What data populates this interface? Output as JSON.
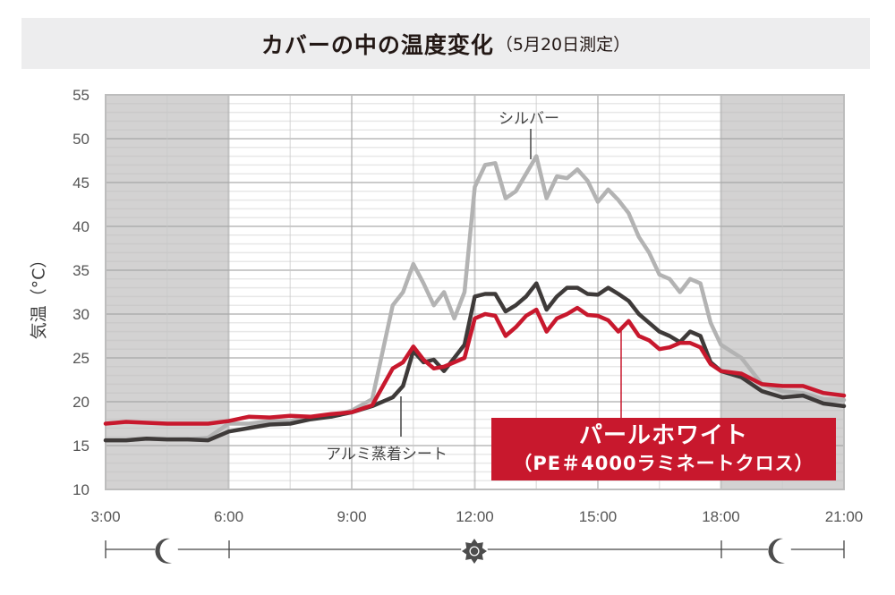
{
  "title": {
    "main": "カバーの中の温度変化",
    "sub": "（5月20日測定）"
  },
  "y_axis_label": "気温（°C）",
  "annotations": {
    "silver": "シルバー",
    "aluminum": "アルミ蒸着シート",
    "pearl_white_line1": "パールホワイト",
    "pearl_white_line2": "（PE＃4000ラミネートクロス）"
  },
  "timeline_icons": [
    "moon-icon",
    "sun-icon",
    "moon-icon"
  ],
  "colors": {
    "silver": "#b3b3b3",
    "aluminum": "#3e3a39",
    "pearl_white": "#c8182d",
    "night_shade": "#d3d2d2",
    "title_bg": "#ededee"
  },
  "chart_data": {
    "type": "line",
    "title": "カバーの中の温度変化（5月20日測定）",
    "xlabel": "",
    "ylabel": "気温（°C）",
    "xlim": [
      "3:00",
      "21:00"
    ],
    "ylim": [
      10,
      55
    ],
    "x_ticks": [
      "3:00",
      "6:00",
      "9:00",
      "12:00",
      "15:00",
      "18:00",
      "21:00"
    ],
    "y_ticks": [
      10,
      15,
      20,
      25,
      30,
      35,
      40,
      45,
      50,
      55
    ],
    "grid": true,
    "night_bands": [
      [
        "3:00",
        "6:00"
      ],
      [
        "18:00",
        "21:00"
      ]
    ],
    "x": [
      3.0,
      3.5,
      4.0,
      4.5,
      5.0,
      5.5,
      6.0,
      6.5,
      7.0,
      7.5,
      8.0,
      8.5,
      9.0,
      9.5,
      10.0,
      10.25,
      10.5,
      10.75,
      11.0,
      11.25,
      11.5,
      11.75,
      12.0,
      12.25,
      12.5,
      12.75,
      13.0,
      13.25,
      13.5,
      13.75,
      14.0,
      14.25,
      14.5,
      14.75,
      15.0,
      15.25,
      15.5,
      15.75,
      16.0,
      16.25,
      16.5,
      16.75,
      17.0,
      17.25,
      17.5,
      17.75,
      18.0,
      18.5,
      19.0,
      19.5,
      20.0,
      20.5,
      21.0
    ],
    "series": [
      {
        "name": "シルバー",
        "values": [
          15.6,
          15.6,
          15.8,
          15.7,
          15.7,
          15.9,
          17.5,
          17.5,
          17.8,
          17.8,
          18.3,
          18.3,
          19.0,
          20.3,
          31.0,
          32.5,
          35.7,
          33.5,
          31.0,
          32.5,
          29.5,
          32.5,
          44.5,
          47.0,
          47.2,
          43.2,
          44.0,
          46.0,
          48.0,
          43.2,
          45.7,
          45.5,
          46.5,
          45.2,
          42.8,
          44.2,
          43.0,
          41.5,
          38.8,
          37.0,
          34.5,
          34.0,
          32.5,
          34.0,
          33.5,
          29.0,
          26.5,
          25.0,
          22.0,
          21.2,
          21.0,
          20.3,
          20.2
        ]
      },
      {
        "name": "アルミ蒸着シート",
        "values": [
          15.6,
          15.6,
          15.8,
          15.7,
          15.7,
          15.6,
          16.6,
          17.0,
          17.4,
          17.5,
          18.0,
          18.3,
          18.8,
          19.5,
          20.5,
          21.8,
          25.8,
          24.5,
          24.8,
          23.5,
          25.0,
          26.5,
          32.0,
          32.3,
          32.3,
          30.3,
          31.0,
          32.0,
          33.5,
          30.5,
          32.0,
          33.0,
          33.0,
          32.3,
          32.2,
          33.0,
          32.3,
          31.5,
          30.0,
          29.0,
          28.0,
          27.5,
          26.8,
          28.0,
          27.5,
          24.5,
          23.5,
          22.8,
          21.2,
          20.5,
          20.7,
          19.8,
          19.5
        ]
      },
      {
        "name": "パールホワイト（PE＃4000ラミネートクロス）",
        "values": [
          17.5,
          17.7,
          17.6,
          17.5,
          17.5,
          17.5,
          17.8,
          18.3,
          18.2,
          18.4,
          18.3,
          18.6,
          18.8,
          19.6,
          23.8,
          24.5,
          26.3,
          24.8,
          23.8,
          24.0,
          24.5,
          25.0,
          29.5,
          30.0,
          29.8,
          27.5,
          28.5,
          29.8,
          30.5,
          28.0,
          29.5,
          30.0,
          30.7,
          29.9,
          29.8,
          29.3,
          28.0,
          29.2,
          27.5,
          27.0,
          26.0,
          26.2,
          26.7,
          26.7,
          26.2,
          24.3,
          23.5,
          23.2,
          22.0,
          21.8,
          21.8,
          21.0,
          20.7
        ]
      }
    ]
  }
}
